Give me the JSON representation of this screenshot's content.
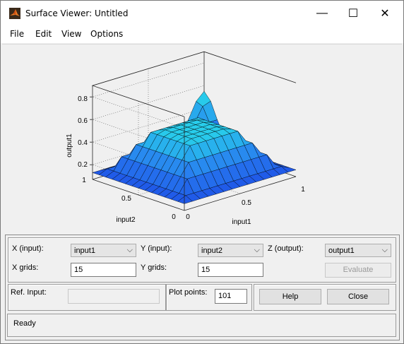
{
  "window": {
    "title": "Surface Viewer: Untitled",
    "minimize_glyph": "—",
    "maximize_glyph": "☐",
    "close_glyph": "✕"
  },
  "menu": [
    "File",
    "Edit",
    "View",
    "Options"
  ],
  "plot": {
    "zlabel": "output1",
    "xlabel": "input1",
    "ylabel": "input2",
    "z_ticks": [
      "0.2",
      "0.4",
      "0.6",
      "0.8"
    ],
    "x_ticks": [
      "0",
      "0.5",
      "1"
    ],
    "y_ticks": [
      "0",
      "0.5",
      "1"
    ]
  },
  "controls": {
    "x_input_label": "X (input):",
    "x_input_value": "input1",
    "y_input_label": "Y (input):",
    "y_input_value": "input2",
    "z_output_label": "Z (output):",
    "z_output_value": "output1",
    "x_grids_label": "X grids:",
    "x_grids_value": "15",
    "y_grids_label": "Y grids:",
    "y_grids_value": "15",
    "evaluate_label": "Evaluate",
    "ref_input_label": "Ref. Input:",
    "ref_input_value": "",
    "plot_points_label": "Plot points:",
    "plot_points_value": "101",
    "help_label": "Help",
    "close_label": "Close"
  },
  "status": {
    "text": "Ready"
  }
}
